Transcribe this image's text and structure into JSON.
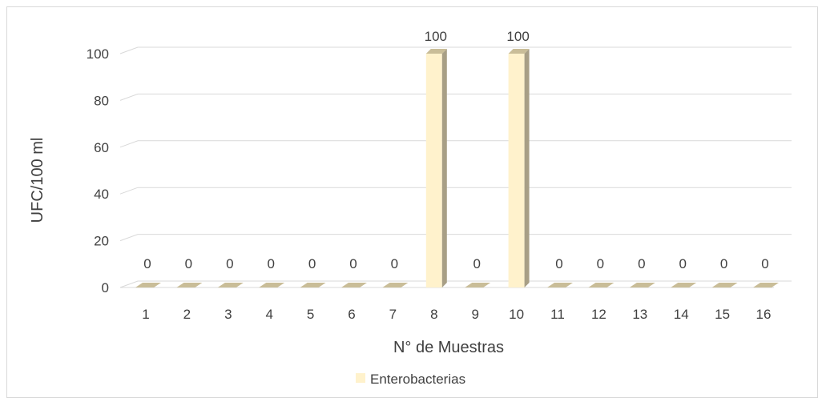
{
  "chart_data": {
    "type": "bar",
    "categories": [
      "1",
      "2",
      "3",
      "4",
      "5",
      "6",
      "7",
      "8",
      "9",
      "10",
      "11",
      "12",
      "13",
      "14",
      "15",
      "16"
    ],
    "series": [
      {
        "name": "Enterobacterias",
        "values": [
          0,
          0,
          0,
          0,
          0,
          0,
          0,
          100,
          0,
          100,
          0,
          0,
          0,
          0,
          0,
          0
        ],
        "color": "#fff2cc",
        "side_color": "#a89f86",
        "top_color": "#c9bd98"
      }
    ],
    "xlabel": "N° de Muestras",
    "ylabel": "UFC/100 ml",
    "ylim": [
      0,
      100
    ],
    "yticks": [
      0,
      20,
      40,
      60,
      80,
      100
    ],
    "data_labels": true,
    "grid": true,
    "legend": "bottom",
    "style": "3d-column"
  }
}
